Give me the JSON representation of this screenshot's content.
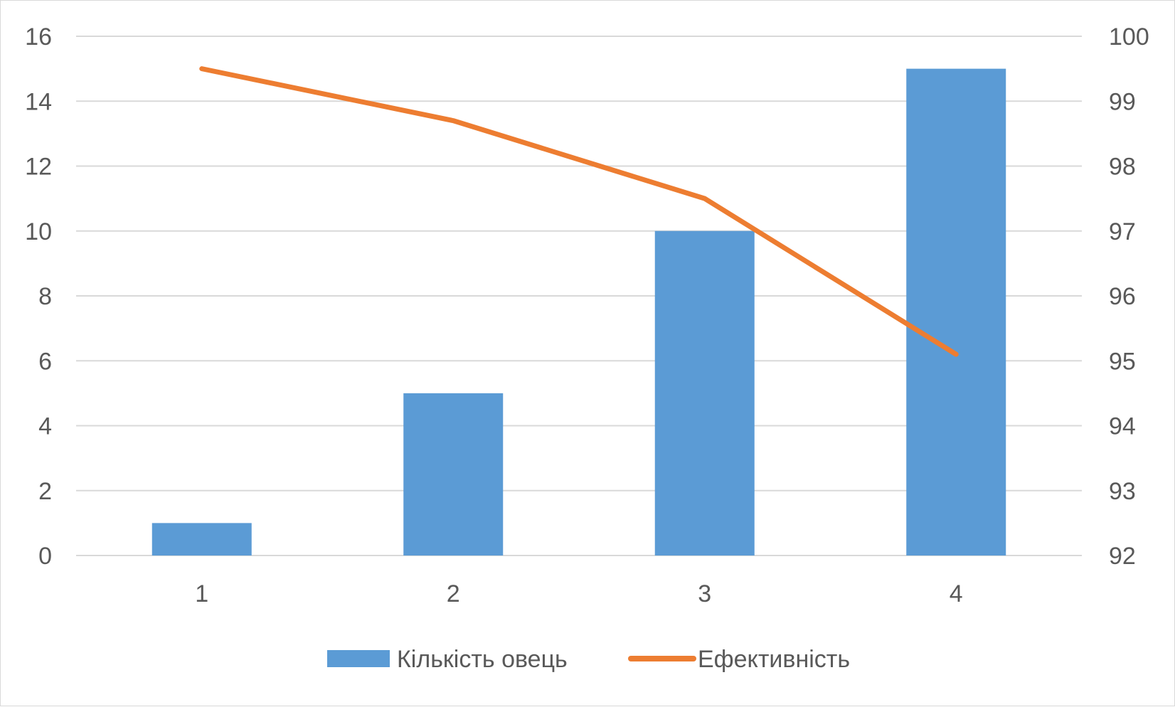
{
  "chart_data": {
    "type": "bar+line",
    "title": "",
    "xlabel": "",
    "ylabel": "",
    "categories": [
      "1",
      "2",
      "3",
      "4"
    ],
    "series": [
      {
        "name": "Кількість овець",
        "type": "bar",
        "axis": "left",
        "color": "#5B9BD5",
        "values": [
          1,
          5,
          10,
          15
        ]
      },
      {
        "name": "Ефективність",
        "type": "line",
        "axis": "right",
        "color": "#ED7D31",
        "values": [
          99.5,
          98.7,
          97.5,
          95.1
        ]
      }
    ],
    "y_left": {
      "min": 0,
      "max": 16,
      "step": 2,
      "ticks": [
        "0",
        "2",
        "4",
        "6",
        "8",
        "10",
        "12",
        "14",
        "16"
      ]
    },
    "y_right": {
      "min": 92,
      "max": 100,
      "step": 1,
      "ticks": [
        "92",
        "93",
        "94",
        "95",
        "96",
        "97",
        "98",
        "99",
        "100"
      ]
    },
    "grid": true,
    "legend": {
      "position": "bottom"
    }
  }
}
